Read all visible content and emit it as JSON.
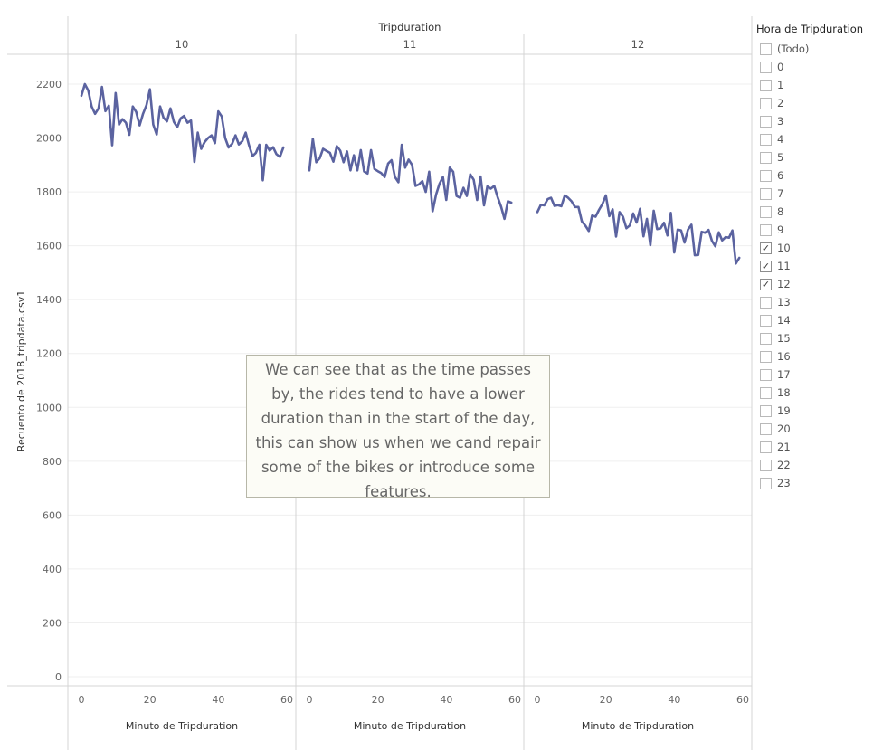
{
  "chart_data": {
    "type": "line",
    "title": "Tripduration",
    "ylabel": "Recuento de 2018_tripdata.csv1",
    "xlabel": "Minuto de Tripduration",
    "ylim": [
      0,
      2250
    ],
    "yticks": [
      0,
      200,
      400,
      600,
      800,
      1000,
      1200,
      1400,
      1600,
      1800,
      2000,
      2200
    ],
    "xlim": [
      0,
      60
    ],
    "xticks": [
      0,
      20,
      40,
      60
    ],
    "grid": "horizontal",
    "color": "#5b63a0",
    "panels": [
      {
        "header": "10",
        "x_start": 0,
        "values": [
          2157,
          2200,
          2176,
          2117,
          2090,
          2110,
          2190,
          2100,
          2120,
          1973,
          2167,
          2050,
          2070,
          2057,
          2012,
          2117,
          2097,
          2047,
          2090,
          2122,
          2181,
          2050,
          2013,
          2117,
          2075,
          2062,
          2110,
          2060,
          2040,
          2073,
          2082,
          2057,
          2065,
          1911,
          2020,
          1960,
          1985,
          2000,
          2010,
          1981,
          2099,
          2080,
          2000,
          1965,
          1978,
          2010,
          1976,
          1988,
          2020,
          1972,
          1933,
          1945,
          1975,
          1843,
          1975,
          1953,
          1966,
          1940,
          1930,
          1965
        ]
      },
      {
        "header": "11",
        "x_start": 0,
        "values": [
          1880,
          1997,
          1910,
          1925,
          1960,
          1952,
          1945,
          1912,
          1970,
          1953,
          1910,
          1950,
          1880,
          1936,
          1880,
          1955,
          1876,
          1868,
          1955,
          1885,
          1877,
          1870,
          1855,
          1905,
          1918,
          1855,
          1836,
          1975,
          1890,
          1920,
          1900,
          1822,
          1828,
          1840,
          1800,
          1875,
          1728,
          1790,
          1830,
          1855,
          1770,
          1890,
          1875,
          1785,
          1778,
          1815,
          1785,
          1865,
          1845,
          1770,
          1857,
          1750,
          1820,
          1812,
          1822,
          1780,
          1745,
          1700,
          1765,
          1760
        ]
      },
      {
        "header": "12",
        "x_start": 0,
        "values": [
          1725,
          1752,
          1750,
          1773,
          1778,
          1748,
          1751,
          1747,
          1787,
          1778,
          1765,
          1744,
          1744,
          1690,
          1675,
          1655,
          1712,
          1708,
          1733,
          1755,
          1787,
          1710,
          1735,
          1634,
          1725,
          1708,
          1665,
          1675,
          1720,
          1686,
          1737,
          1635,
          1700,
          1602,
          1730,
          1662,
          1665,
          1685,
          1638,
          1722,
          1575,
          1660,
          1657,
          1612,
          1660,
          1678,
          1565,
          1566,
          1652,
          1648,
          1659,
          1618,
          1598,
          1650,
          1620,
          1632,
          1630,
          1657,
          1534,
          1555
        ]
      }
    ]
  },
  "annotation": {
    "lines": [
      "We can see that as the time passes",
      "by, the rides tend to have a lower",
      "duration than in the start of the day,",
      "this can show us when we cand repair",
      "some of the bikes or introduce some",
      "features."
    ]
  },
  "filter": {
    "title": "Hora de Tripduration",
    "items": [
      {
        "label": "(Todo)",
        "checked": false
      },
      {
        "label": "0",
        "checked": false
      },
      {
        "label": "1",
        "checked": false
      },
      {
        "label": "2",
        "checked": false
      },
      {
        "label": "3",
        "checked": false
      },
      {
        "label": "4",
        "checked": false
      },
      {
        "label": "5",
        "checked": false
      },
      {
        "label": "6",
        "checked": false
      },
      {
        "label": "7",
        "checked": false
      },
      {
        "label": "8",
        "checked": false
      },
      {
        "label": "9",
        "checked": false
      },
      {
        "label": "10",
        "checked": true
      },
      {
        "label": "11",
        "checked": true
      },
      {
        "label": "12",
        "checked": true
      },
      {
        "label": "13",
        "checked": false
      },
      {
        "label": "14",
        "checked": false
      },
      {
        "label": "15",
        "checked": false
      },
      {
        "label": "16",
        "checked": false
      },
      {
        "label": "17",
        "checked": false
      },
      {
        "label": "18",
        "checked": false
      },
      {
        "label": "19",
        "checked": false
      },
      {
        "label": "20",
        "checked": false
      },
      {
        "label": "21",
        "checked": false
      },
      {
        "label": "22",
        "checked": false
      },
      {
        "label": "23",
        "checked": false
      }
    ]
  }
}
